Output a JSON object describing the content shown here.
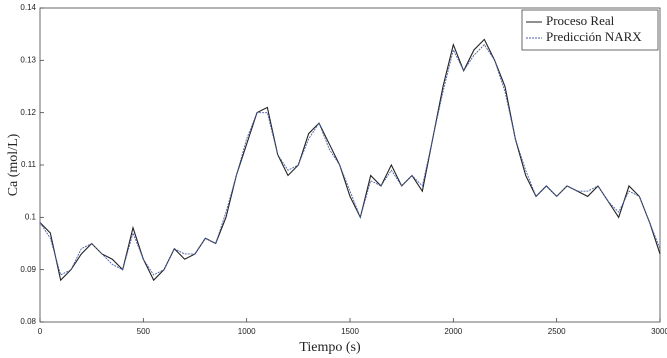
{
  "chart_data": {
    "type": "line",
    "xlabel": "Tiempo (s)",
    "ylabel": "Ca (mol/L)",
    "x": [
      0,
      50,
      100,
      150,
      200,
      250,
      300,
      350,
      400,
      450,
      500,
      550,
      600,
      650,
      700,
      750,
      800,
      850,
      900,
      950,
      1000,
      1050,
      1100,
      1150,
      1200,
      1250,
      1300,
      1350,
      1400,
      1450,
      1500,
      1550,
      1600,
      1650,
      1700,
      1750,
      1800,
      1850,
      1900,
      1950,
      2000,
      2050,
      2100,
      2150,
      2200,
      2250,
      2300,
      2350,
      2400,
      2450,
      2500,
      2550,
      2600,
      2650,
      2700,
      2750,
      2800,
      2850,
      2900,
      2950,
      3000
    ],
    "series": [
      {
        "name": "Proceso Real",
        "color": "#222222",
        "values": [
          0.099,
          0.097,
          0.088,
          0.09,
          0.093,
          0.095,
          0.093,
          0.092,
          0.09,
          0.098,
          0.092,
          0.088,
          0.09,
          0.094,
          0.092,
          0.093,
          0.096,
          0.095,
          0.1,
          0.108,
          0.114,
          0.12,
          0.121,
          0.112,
          0.108,
          0.11,
          0.116,
          0.118,
          0.114,
          0.11,
          0.104,
          0.1,
          0.108,
          0.106,
          0.11,
          0.106,
          0.108,
          0.105,
          0.115,
          0.125,
          0.133,
          0.128,
          0.132,
          0.134,
          0.13,
          0.125,
          0.115,
          0.108,
          0.104,
          0.106,
          0.104,
          0.106,
          0.105,
          0.104,
          0.106,
          0.103,
          0.1,
          0.106,
          0.104,
          0.099,
          0.093
        ]
      },
      {
        "name": "Predicción NARX",
        "color": "#4a5fa8",
        "values": [
          0.099,
          0.096,
          0.089,
          0.09,
          0.094,
          0.095,
          0.093,
          0.091,
          0.09,
          0.097,
          0.092,
          0.089,
          0.09,
          0.094,
          0.093,
          0.093,
          0.096,
          0.095,
          0.101,
          0.108,
          0.115,
          0.12,
          0.12,
          0.112,
          0.109,
          0.11,
          0.115,
          0.118,
          0.113,
          0.11,
          0.105,
          0.1,
          0.107,
          0.106,
          0.109,
          0.106,
          0.108,
          0.106,
          0.115,
          0.124,
          0.132,
          0.128,
          0.131,
          0.133,
          0.13,
          0.124,
          0.115,
          0.109,
          0.104,
          0.106,
          0.104,
          0.106,
          0.105,
          0.105,
          0.106,
          0.103,
          0.101,
          0.105,
          0.104,
          0.099,
          0.094
        ]
      }
    ],
    "xlim": [
      0,
      3000
    ],
    "xticks": [
      0,
      500,
      1000,
      1500,
      2000,
      2500,
      3000
    ],
    "ylim": [
      0.08,
      0.14
    ],
    "yticks": [
      0.08,
      0.09,
      0.1,
      0.11,
      0.12,
      0.13,
      0.14
    ],
    "legend": "top-right"
  }
}
